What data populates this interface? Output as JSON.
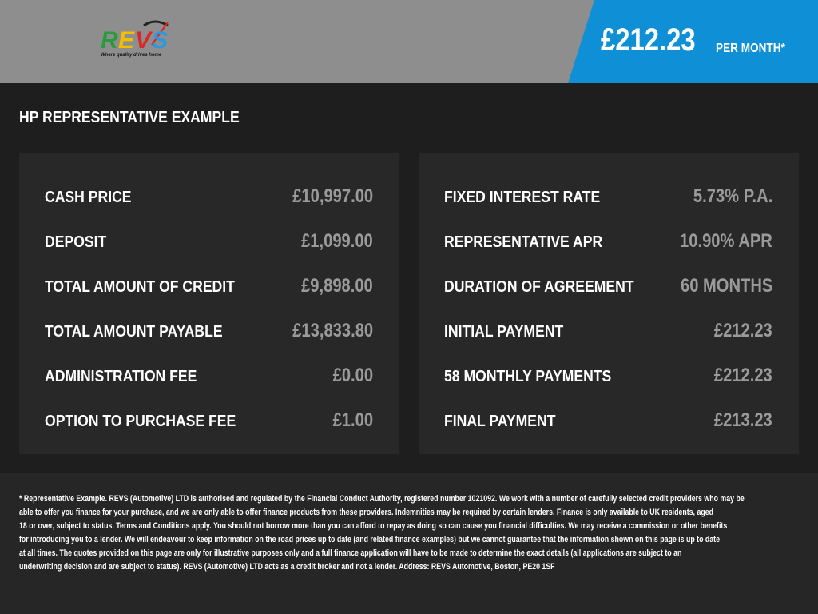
{
  "header": {
    "logo_text": "REVS",
    "logo_tagline": "Where quality drives home",
    "monthly_price": "£212.23",
    "per_month_label": "PER MONTH*",
    "accent_color": "#0e8fd6"
  },
  "main": {
    "title": "HP REPRESENTATIVE EXAMPLE",
    "left": [
      {
        "label": "CASH PRICE",
        "value": "£10,997.00"
      },
      {
        "label": "DEPOSIT",
        "value": "£1,099.00"
      },
      {
        "label": "TOTAL AMOUNT OF CREDIT",
        "value": "£9,898.00"
      },
      {
        "label": "TOTAL AMOUNT PAYABLE",
        "value": "£13,833.80"
      },
      {
        "label": "ADMINISTRATION FEE",
        "value": "£0.00"
      },
      {
        "label": "OPTION TO PURCHASE FEE",
        "value": "£1.00"
      }
    ],
    "right": [
      {
        "label": "FIXED INTEREST RATE",
        "value": "5.73% P.A."
      },
      {
        "label": "REPRESENTATIVE APR",
        "value": "10.90% APR"
      },
      {
        "label": "DURATION OF AGREEMENT",
        "value": "60 MONTHS"
      },
      {
        "label": "INITIAL PAYMENT",
        "value": "£212.23"
      },
      {
        "label": "58 MONTHLY PAYMENTS",
        "value": "£212.23"
      },
      {
        "label": "FINAL PAYMENT",
        "value": "£213.23"
      }
    ]
  },
  "footer": {
    "disclaimer_lines": [
      "* Representative Example. REVS (Automotive) LTD is authorised and regulated by the Financial Conduct Authority, registered number 1021092. We work with a number of carefully selected credit providers who may be",
      "able to offer you finance for your purchase, and we are only able to offer finance products from these providers. Indemnities may be required by certain lenders. Finance is only available to UK residents, aged",
      "18 or over, subject to status. Terms and Conditions apply. You should not borrow more than you can afford to repay as doing so can cause you financial difficulties. We may receive a commission or other benefits",
      "for introducing you to a lender. We will endeavour to keep information on the road prices up to date (and related finance examples) but we cannot guarantee that the information shown on this page is up to date",
      "at all times. The quotes provided on this page are only for illustrative purposes only and a full finance application will have to be made to determine the exact details (all applications are subject to an",
      "underwriting decision and are subject to status). REVS (Automotive) LTD acts as a credit broker and not a lender. Address: REVS Automotive, Boston, PE20 1SF"
    ]
  }
}
